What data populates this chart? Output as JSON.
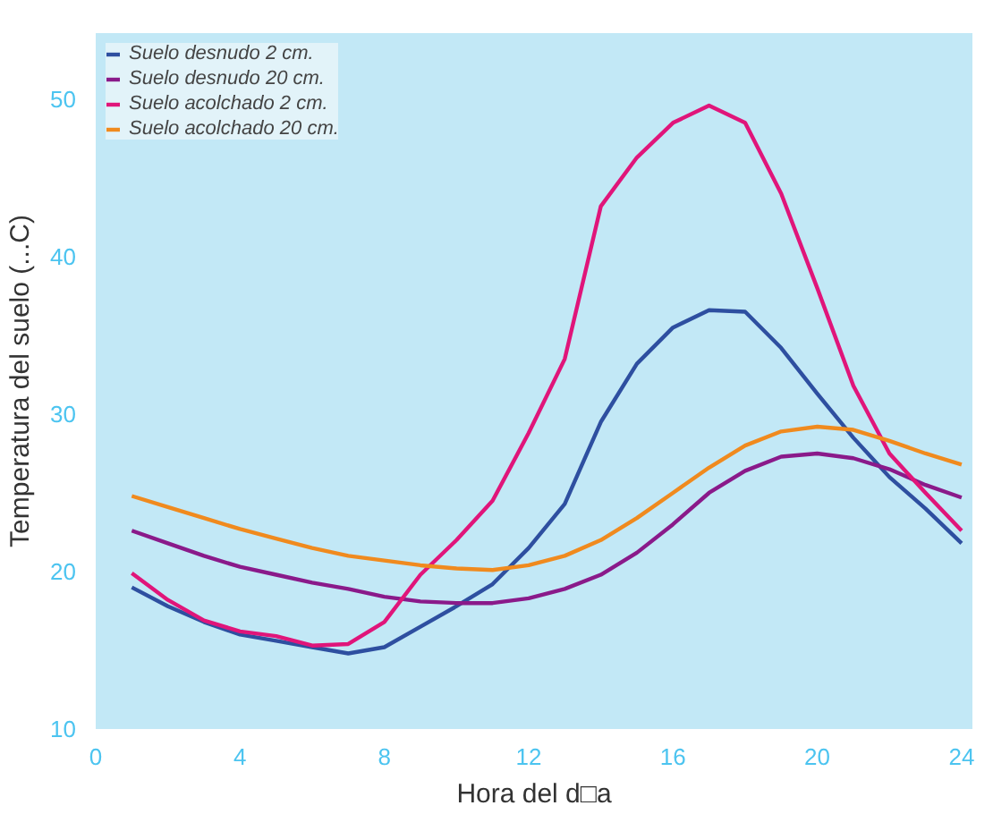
{
  "chart_data": {
    "type": "line",
    "xlabel": "Hora del d□a",
    "ylabel": "Temperatura del suelo (...C)",
    "x": [
      1,
      2,
      3,
      4,
      5,
      6,
      7,
      8,
      9,
      10,
      11,
      12,
      13,
      14,
      15,
      16,
      17,
      18,
      19,
      20,
      21,
      22,
      23,
      24
    ],
    "series": [
      {
        "name": "Suelo desnudo 2 cm.",
        "color": "#2e4fa0",
        "values": [
          19.0,
          17.8,
          16.8,
          16.0,
          15.6,
          15.2,
          14.8,
          15.2,
          16.5,
          17.8,
          19.2,
          21.5,
          24.3,
          29.5,
          33.2,
          35.5,
          36.6,
          36.5,
          34.2,
          31.3,
          28.5,
          26.0,
          24.0,
          21.8
        ]
      },
      {
        "name": "Suelo desnudo 20 cm.",
        "color": "#8a1a8a",
        "values": [
          22.6,
          21.8,
          21.0,
          20.3,
          19.8,
          19.3,
          18.9,
          18.4,
          18.1,
          18.0,
          18.0,
          18.3,
          18.9,
          19.8,
          21.2,
          23.0,
          25.0,
          26.4,
          27.3,
          27.5,
          27.2,
          26.5,
          25.5,
          24.7
        ]
      },
      {
        "name": "Suelo acolchado 2 cm.",
        "color": "#e0157a",
        "values": [
          19.9,
          18.2,
          16.9,
          16.2,
          15.9,
          15.3,
          15.4,
          16.8,
          19.8,
          22.0,
          24.5,
          28.8,
          33.5,
          43.2,
          46.3,
          48.5,
          49.6,
          48.5,
          44.0,
          38.0,
          31.8,
          27.5,
          25.0,
          22.6
        ]
      },
      {
        "name": "Suelo acolchado 20 cm.",
        "color": "#f08a1e",
        "values": [
          24.8,
          24.1,
          23.4,
          22.7,
          22.1,
          21.5,
          21.0,
          20.7,
          20.4,
          20.2,
          20.1,
          20.4,
          21.0,
          22.0,
          23.4,
          25.0,
          26.6,
          28.0,
          28.9,
          29.2,
          29.0,
          28.3,
          27.5,
          26.8
        ]
      }
    ],
    "xlim": [
      0,
      24.3
    ],
    "ylim": [
      10,
      54.2
    ],
    "xticks": [
      0,
      4,
      8,
      12,
      16,
      20,
      24
    ],
    "yticks": [
      10,
      20,
      30,
      40,
      50
    ],
    "grid": false,
    "legend": "top left",
    "marker": "none",
    "line_style": "solid"
  }
}
